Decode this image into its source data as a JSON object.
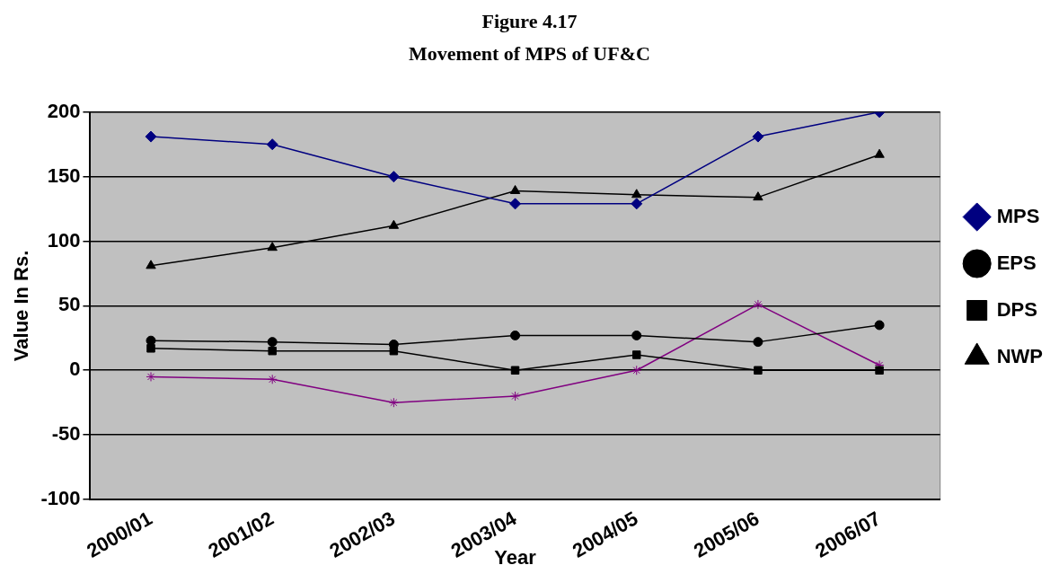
{
  "chart_data": {
    "type": "line",
    "title": "Figure 4.17",
    "subtitle": "Movement of MPS of UF&C",
    "xlabel": "Year",
    "ylabel": "Value In Rs.",
    "categories": [
      "2000/01",
      "2001/02",
      "2002/03",
      "2003/04",
      "2004/05",
      "2005/06",
      "2006/07"
    ],
    "series": [
      {
        "name": "MPS",
        "color": "#000080",
        "marker": "diamond",
        "values": [
          181,
          175,
          150,
          129,
          129,
          181,
          200
        ]
      },
      {
        "name": "EPS",
        "color": "#000000",
        "marker": "circle",
        "values": [
          23,
          22,
          20,
          27,
          27,
          22,
          35
        ]
      },
      {
        "name": "DPS",
        "color": "#000000",
        "marker": "square",
        "values": [
          17,
          15,
          15,
          0,
          12,
          0,
          0
        ]
      },
      {
        "name": "NWP",
        "color": "#000000",
        "marker": "triangle",
        "values": [
          81,
          95,
          112,
          139,
          136,
          134,
          167
        ]
      },
      {
        "color": "#800080",
        "marker": "cross",
        "values": [
          -5,
          -7,
          -25,
          -20,
          0,
          51,
          4
        ]
      }
    ],
    "ylim": [
      -100,
      200
    ],
    "yticks": [
      -100,
      -50,
      0,
      50,
      100,
      150,
      200
    ],
    "grid": "y",
    "legend": "right"
  }
}
